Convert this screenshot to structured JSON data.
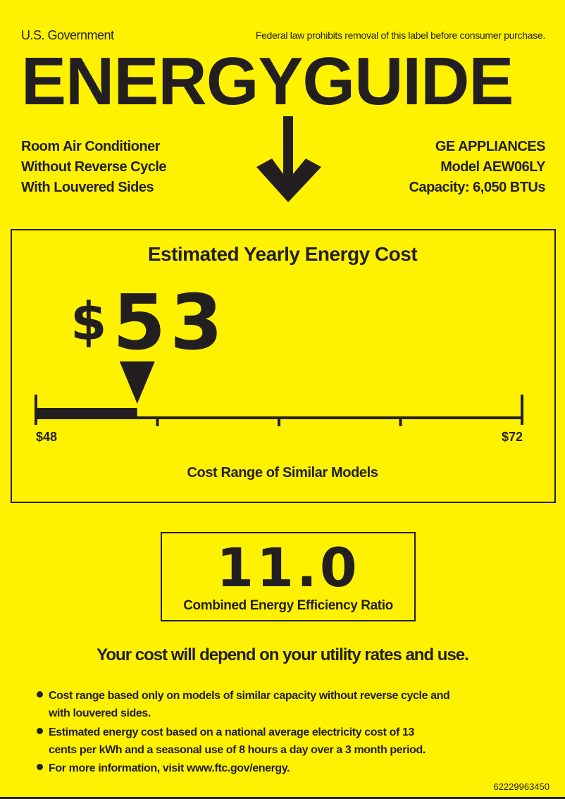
{
  "header": {
    "issuer": "U.S. Government",
    "notice": "Federal law prohibits removal of this label before consumer purchase.",
    "title": "ENERGYGUIDE"
  },
  "product": {
    "type_lines": [
      "Room Air Conditioner",
      "Without Reverse Cycle",
      "With Louvered Sides"
    ],
    "manufacturer": "GE APPLIANCES",
    "model": "Model AEW06LY",
    "capacity": "Capacity: 6,050 BTUs"
  },
  "cost": {
    "heading": "Estimated Yearly Energy Cost",
    "currency": "$",
    "value": "53",
    "range_min": "$48",
    "range_max": "$72",
    "range_label": "Cost Range of Similar Models",
    "scale_min": 48,
    "scale_max": 72,
    "estimate": 53
  },
  "efficiency": {
    "value": "11.0",
    "label": "Combined Energy Efficiency Ratio"
  },
  "disclaimer": "Your cost will depend on your utility rates and use.",
  "notes": [
    [
      "Cost range based only on models of similar capacity without reverse cycle and",
      "with louvered sides."
    ],
    [
      "Estimated energy cost based on a national average electricity cost of 13",
      "cents per kWh and a seasonal use of 8 hours a day over a 3 month period."
    ],
    [
      "For more information, visit www.ftc.gov/energy."
    ]
  ],
  "label_code": "62229963450",
  "colors": {
    "background": "#fff200",
    "ink": "#231f20"
  }
}
